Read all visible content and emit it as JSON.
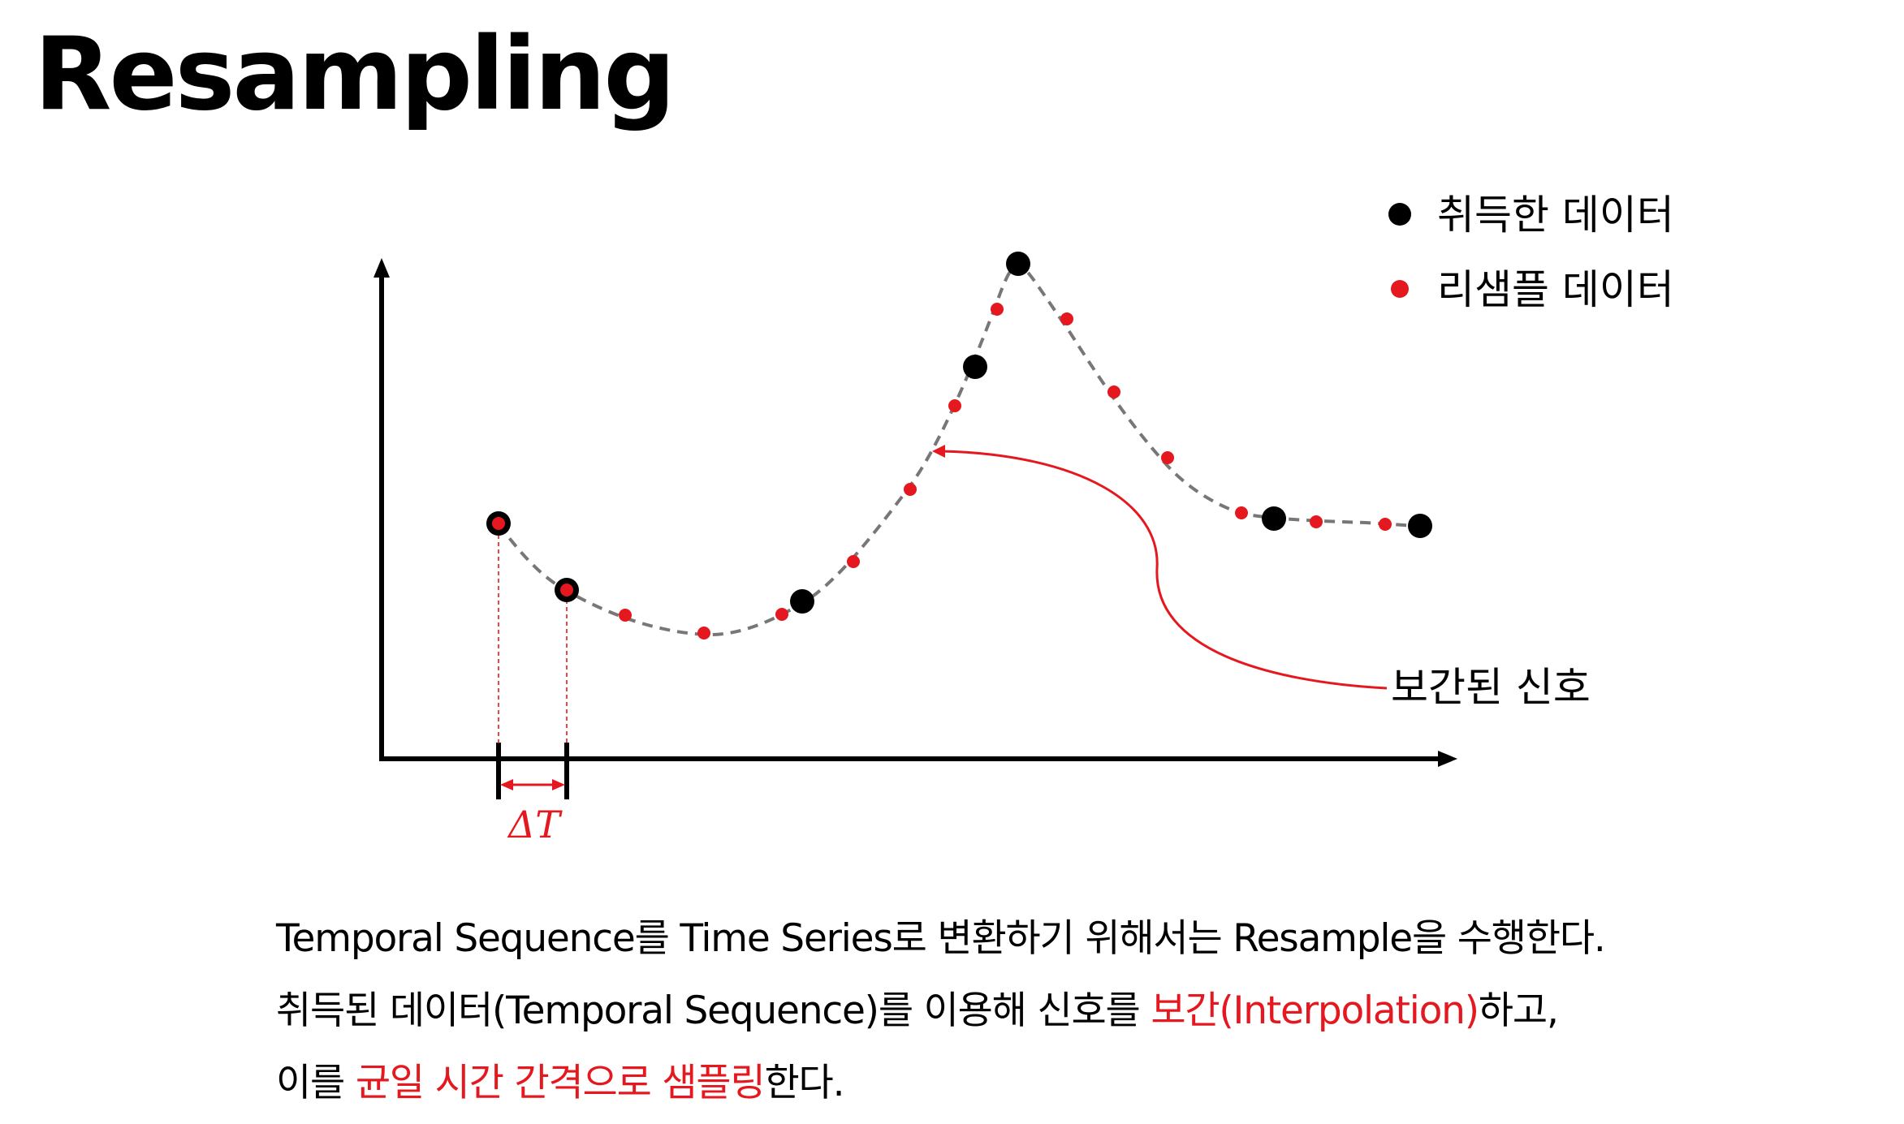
{
  "title": "Resampling",
  "legend": {
    "acquired_label": "취득한 데이터",
    "resampled_label": "리샘플 데이터",
    "placement": "top-right"
  },
  "annotation": {
    "interpolated_signal_label": "보간된 신호",
    "delta_t_label": "ΔT"
  },
  "description": {
    "line1": "Temporal Sequence를 Time Series로 변환하기 위해서는 Resample을 수행한다.",
    "line2_prefix": "취득된 데이터(Temporal Sequence)를 이용해 신호를 ",
    "line2_highlight": "보간(Interpolation)",
    "line2_suffix": "하고,",
    "line3_prefix": "이를 ",
    "line3_highlight": "균일 시간 간격으로 샘플링",
    "line3_suffix": "한다."
  },
  "colors": {
    "acquired": "#000000",
    "resampled": "#e4181e",
    "curve": "#777777",
    "highlight": "#e4181e",
    "axis": "#000000"
  },
  "icons": {
    "acquired_marker": "black-dot-icon",
    "resampled_marker": "red-dot-icon"
  }
}
